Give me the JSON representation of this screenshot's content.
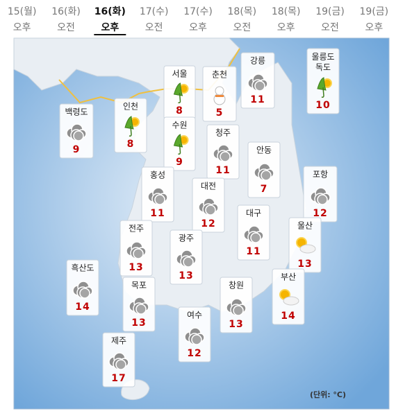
{
  "tabs": [
    {
      "day": "15(월)",
      "period": "오후"
    },
    {
      "day": "16(화)",
      "period": "오전"
    },
    {
      "day": "16(화)",
      "period": "오후"
    },
    {
      "day": "17(수)",
      "period": "오전"
    },
    {
      "day": "17(수)",
      "period": "오후"
    },
    {
      "day": "18(목)",
      "period": "오전"
    },
    {
      "day": "18(목)",
      "period": "오후"
    },
    {
      "day": "19(금)",
      "period": "오전"
    },
    {
      "day": "19(금)",
      "period": "오후"
    }
  ],
  "selected": 2,
  "cities": [
    {
      "name": "백령도",
      "temp": 9,
      "icon": "cloud"
    },
    {
      "name": "인천",
      "temp": 8,
      "icon": "umbrella"
    },
    {
      "name": "서울",
      "temp": 8,
      "icon": "umbrella"
    },
    {
      "name": "수원",
      "temp": 9,
      "icon": "umbrella"
    },
    {
      "name": "춘천",
      "temp": 5,
      "icon": "snow"
    },
    {
      "name": "강릉",
      "temp": 11,
      "icon": "cloud"
    },
    {
      "name": "울릉도 독도",
      "temp": 10,
      "icon": "umbrella"
    },
    {
      "name": "청주",
      "temp": 11,
      "icon": "cloud"
    },
    {
      "name": "안동",
      "temp": 7,
      "icon": "cloud"
    },
    {
      "name": "홍성",
      "temp": 11,
      "icon": "cloud"
    },
    {
      "name": "대전",
      "temp": 12,
      "icon": "cloud"
    },
    {
      "name": "포항",
      "temp": 12,
      "icon": "cloud"
    },
    {
      "name": "대구",
      "temp": 11,
      "icon": "cloud"
    },
    {
      "name": "전주",
      "temp": 13,
      "icon": "cloud"
    },
    {
      "name": "광주",
      "temp": 13,
      "icon": "cloud"
    },
    {
      "name": "울산",
      "temp": 13,
      "icon": "sun-cloud"
    },
    {
      "name": "흑산도",
      "temp": 14,
      "icon": "cloud"
    },
    {
      "name": "목포",
      "temp": 13,
      "icon": "cloud"
    },
    {
      "name": "창원",
      "temp": 13,
      "icon": "cloud"
    },
    {
      "name": "부산",
      "temp": 14,
      "icon": "sun-cloud"
    },
    {
      "name": "여수",
      "temp": 12,
      "icon": "cloud"
    },
    {
      "name": "제주",
      "temp": 17,
      "icon": "cloud"
    }
  ],
  "unit": "(단위: °C)"
}
